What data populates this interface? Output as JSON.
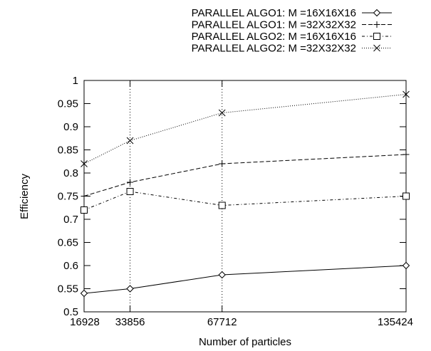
{
  "chart_data": {
    "type": "line",
    "xlabel": "Number of particles",
    "ylabel": "Efficiency",
    "x": [
      16928,
      33856,
      67712,
      135424
    ],
    "xticks": [
      "16928",
      "33856",
      "67712",
      "135424"
    ],
    "xlim": [
      16928,
      135424
    ],
    "ylim": [
      0.5,
      1.0
    ],
    "yticks": [
      "0.5",
      "0.55",
      "0.6",
      "0.65",
      "0.7",
      "0.75",
      "0.8",
      "0.85",
      "0.9",
      "0.95",
      "1"
    ],
    "grid": "dotted",
    "legend_position": "top",
    "series": [
      {
        "name": "PARALLEL ALGO1: M =16X16X16",
        "marker": "diamond",
        "dash": "solid",
        "values": [
          0.54,
          0.55,
          0.58,
          0.6
        ]
      },
      {
        "name": "PARALLEL ALGO1: M =32X32X32",
        "marker": "plus",
        "dash": "dashed",
        "values": [
          0.75,
          0.78,
          0.82,
          0.84
        ]
      },
      {
        "name": "PARALLEL ALGO2: M =16X16X16",
        "marker": "square",
        "dash": "dashdot",
        "values": [
          0.72,
          0.76,
          0.73,
          0.75
        ]
      },
      {
        "name": "PARALLEL ALGO2: M =32X32X32",
        "marker": "cross",
        "dash": "dotted",
        "values": [
          0.82,
          0.87,
          0.93,
          0.97
        ]
      }
    ]
  }
}
